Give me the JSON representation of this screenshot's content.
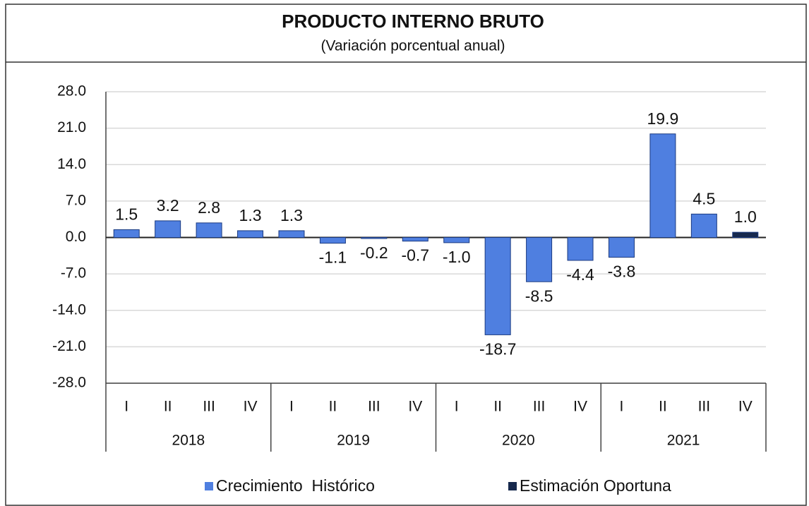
{
  "chart_data": {
    "type": "bar",
    "title": "Producto Interno Bruto",
    "subtitle": "(Variación porcentual anual)",
    "categories": [
      "I",
      "II",
      "III",
      "IV",
      "I",
      "II",
      "III",
      "IV",
      "I",
      "II",
      "III",
      "IV",
      "I",
      "II",
      "III",
      "IV"
    ],
    "groups": [
      "2018",
      "2019",
      "2020",
      "2021"
    ],
    "series": [
      {
        "name": "Crecimiento  Histórico",
        "color": "#4f7fe0",
        "values": [
          1.5,
          3.2,
          2.8,
          1.3,
          1.3,
          -1.1,
          -0.2,
          -0.7,
          -1.0,
          -18.7,
          -8.5,
          -4.4,
          -3.8,
          19.9,
          4.5,
          null
        ],
        "value_labels": [
          "1.5",
          "3.2",
          "2.8",
          "1.3",
          "1.3",
          "-1.1",
          "-0.2",
          "-0.7",
          "-1.0",
          "-18.7",
          "-8.5",
          "-4.4",
          "-3.8",
          "19.9",
          "4.5",
          null
        ]
      },
      {
        "name": "Estimación Oportuna",
        "color": "#17294d",
        "values": [
          null,
          null,
          null,
          null,
          null,
          null,
          null,
          null,
          null,
          null,
          null,
          null,
          null,
          null,
          null,
          1.0
        ],
        "value_labels": [
          null,
          null,
          null,
          null,
          null,
          null,
          null,
          null,
          null,
          null,
          null,
          null,
          null,
          null,
          null,
          "1.0"
        ]
      }
    ],
    "ylim": [
      -28,
      28
    ],
    "yticks": [
      {
        "value": 28,
        "label": "28.0"
      },
      {
        "value": 21,
        "label": "21.0"
      },
      {
        "value": 14,
        "label": "14.0"
      },
      {
        "value": 7,
        "label": "7.0"
      },
      {
        "value": 0,
        "label": "0.0"
      },
      {
        "value": -7,
        "label": "-7.0"
      },
      {
        "value": -14,
        "label": "-14.0"
      },
      {
        "value": -21,
        "label": "-21.0"
      },
      {
        "value": -28,
        "label": "-28.0"
      }
    ],
    "grid": true,
    "legend": "bottom"
  }
}
